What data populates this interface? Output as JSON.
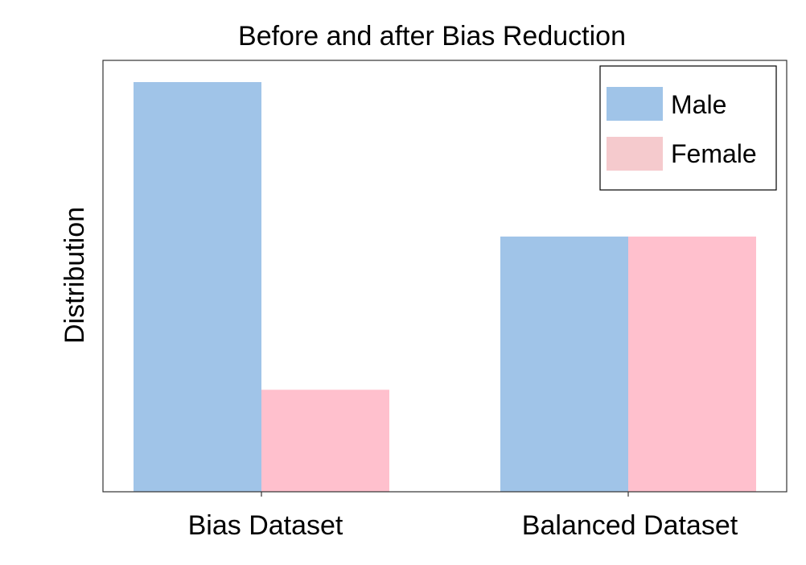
{
  "chart_data": {
    "type": "bar",
    "title": "Before and after Bias Reduction",
    "xlabel": "",
    "ylabel": "Distribution",
    "categories": [
      "Bias Dataset",
      "Balanced Dataset"
    ],
    "series": [
      {
        "name": "Male",
        "values": [
          100,
          62.3
        ],
        "color": "#a0c4e8"
      },
      {
        "name": "Female",
        "values": [
          24.9,
          62.3
        ],
        "color": "#ffc0cd"
      }
    ],
    "ylim": [
      0,
      100
    ],
    "grid": false,
    "legend": "top-right",
    "legend_swatch_colors": [
      "#a0c4e8",
      "#f5cacd"
    ]
  }
}
